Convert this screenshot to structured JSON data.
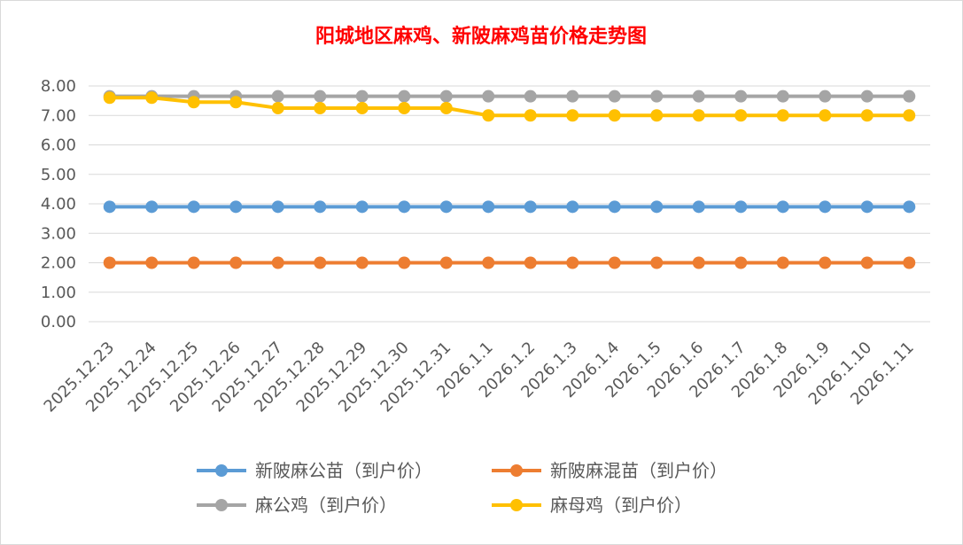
{
  "chart_data": {
    "type": "line",
    "title": "阳城地区麻鸡、新陂麻鸡苗价格走势图",
    "xlabel": "",
    "ylabel": "",
    "ylim": [
      0,
      8
    ],
    "yticks": [
      "0.00",
      "1.00",
      "2.00",
      "3.00",
      "4.00",
      "5.00",
      "6.00",
      "7.00",
      "8.00"
    ],
    "grid": true,
    "legend_position": "bottom",
    "categories": [
      "2025.12.23",
      "2025.12.24",
      "2025.12.25",
      "2025.12.26",
      "2025.12.27",
      "2025.12.28",
      "2025.12.29",
      "2025.12.30",
      "2025.12.31",
      "2026.1.1",
      "2026.1.2",
      "2026.1.3",
      "2026.1.4",
      "2026.1.5",
      "2026.1.6",
      "2026.1.7",
      "2026.1.8",
      "2026.1.9",
      "2026.1.10",
      "2026.1.11"
    ],
    "series": [
      {
        "name": "新陂麻公苗（到户价）",
        "color": "#5b9bd5",
        "values": [
          3.9,
          3.9,
          3.9,
          3.9,
          3.9,
          3.9,
          3.9,
          3.9,
          3.9,
          3.9,
          3.9,
          3.9,
          3.9,
          3.9,
          3.9,
          3.9,
          3.9,
          3.9,
          3.9,
          3.9
        ]
      },
      {
        "name": "新陂麻混苗（到户价）",
        "color": "#ed7d31",
        "values": [
          2.0,
          2.0,
          2.0,
          2.0,
          2.0,
          2.0,
          2.0,
          2.0,
          2.0,
          2.0,
          2.0,
          2.0,
          2.0,
          2.0,
          2.0,
          2.0,
          2.0,
          2.0,
          2.0,
          2.0
        ]
      },
      {
        "name": "麻公鸡（到户价）",
        "color": "#a5a5a5",
        "values": [
          7.65,
          7.65,
          7.65,
          7.65,
          7.65,
          7.65,
          7.65,
          7.65,
          7.65,
          7.65,
          7.65,
          7.65,
          7.65,
          7.65,
          7.65,
          7.65,
          7.65,
          7.65,
          7.65,
          7.65
        ]
      },
      {
        "name": "麻母鸡（到户价）",
        "color": "#ffc000",
        "values": [
          7.6,
          7.6,
          7.45,
          7.45,
          7.25,
          7.25,
          7.25,
          7.25,
          7.25,
          7.0,
          7.0,
          7.0,
          7.0,
          7.0,
          7.0,
          7.0,
          7.0,
          7.0,
          7.0,
          7.0
        ]
      }
    ]
  }
}
